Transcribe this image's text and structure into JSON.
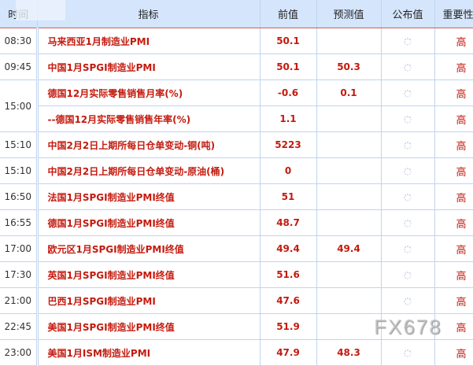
{
  "headers": [
    "时间",
    "指标",
    "前值",
    "预测值",
    "公布值",
    "重要性"
  ],
  "rows": [
    {
      "time": "08:30",
      "name": "马来西亚1月制造业PMI",
      "prev": "50.1",
      "forecast": "",
      "importance": "高"
    },
    {
      "time": "09:45",
      "name": "中国1月SPGI制造业PMI",
      "prev": "50.1",
      "forecast": "50.3",
      "importance": "高"
    },
    {
      "time": "15:00",
      "name": "德国12月实际零售销售月率(%)",
      "prev": "-0.6",
      "forecast": "0.1",
      "importance": "高"
    },
    {
      "time": "",
      "name": "--德国12月实际零售销售年率(%)",
      "prev": "1.1",
      "forecast": "",
      "importance": "高"
    },
    {
      "time": "15:10",
      "name": "中国2月2日上期所每日仓单变动-铜(吨)",
      "prev": "5223",
      "forecast": "",
      "importance": "高"
    },
    {
      "time": "15:10",
      "name": "中国2月2日上期所每日仓单变动-原油(桶)",
      "prev": "0",
      "forecast": "",
      "importance": "高"
    },
    {
      "time": "16:50",
      "name": "法国1月SPGI制造业PMI终值",
      "prev": "51",
      "forecast": "",
      "importance": "高"
    },
    {
      "time": "16:55",
      "name": "德国1月SPGI制造业PMI终值",
      "prev": "48.7",
      "forecast": "",
      "importance": "高"
    },
    {
      "time": "17:00",
      "name": "欧元区1月SPGI制造业PMI终值",
      "prev": "49.4",
      "forecast": "49.4",
      "importance": "高"
    },
    {
      "time": "17:30",
      "name": "英国1月SPGI制造业PMI终值",
      "prev": "51.6",
      "forecast": "",
      "importance": "高"
    },
    {
      "time": "21:00",
      "name": "巴西1月SPGI制造业PMI",
      "prev": "47.6",
      "forecast": "",
      "importance": "高"
    },
    {
      "time": "22:45",
      "name": "美国1月SPGI制造业PMI终值",
      "prev": "51.9",
      "forecast": "",
      "importance": "高"
    },
    {
      "time": "23:00",
      "name": "美国1月ISM制造业PMI",
      "prev": "47.9",
      "forecast": "48.3",
      "importance": "高"
    }
  ],
  "published_icon": "loading-spinner-icon",
  "watermark": "FX678",
  "colors": {
    "header_bg": "#d5e5fb",
    "accent_red": "#c41a0e",
    "grid": "#c0d4f0"
  }
}
